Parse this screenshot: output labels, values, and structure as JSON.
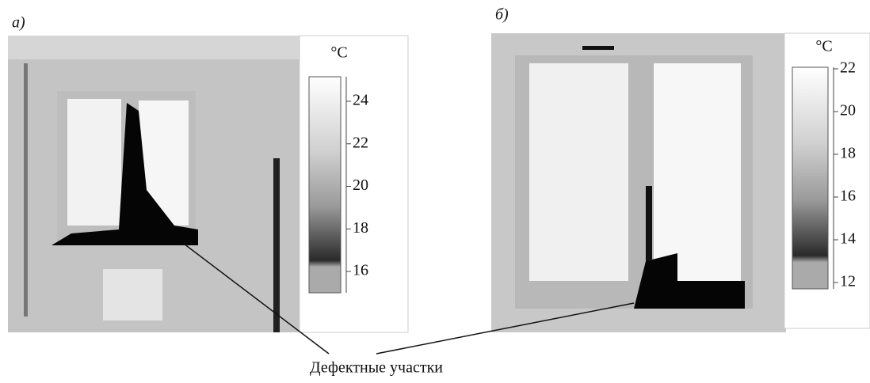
{
  "panels": [
    {
      "label": "а)",
      "unit": "°C",
      "ticks": [
        24,
        22,
        20,
        18,
        16
      ]
    },
    {
      "label": "б)",
      "unit": "°C",
      "ticks": [
        22,
        20,
        18,
        16,
        14,
        12
      ]
    }
  ],
  "annotation": "Дефектные участки"
}
